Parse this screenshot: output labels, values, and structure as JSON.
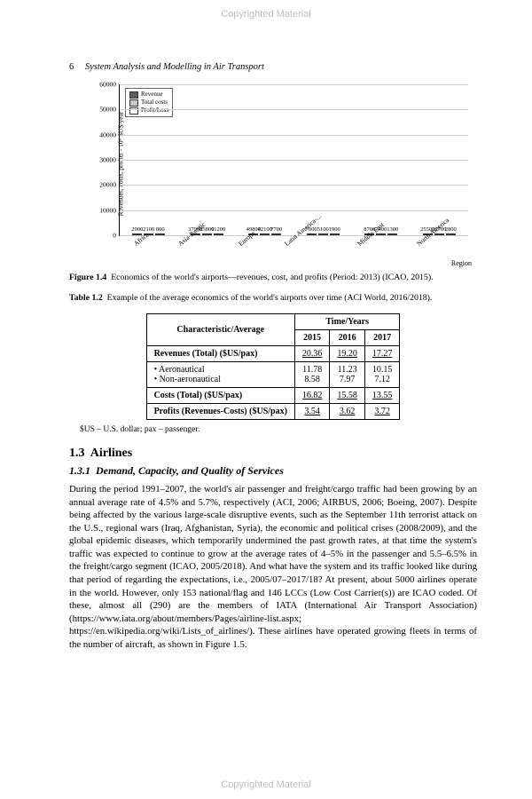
{
  "watermark": "Copyrighted Material",
  "page_number": "6",
  "running_title": "System Analysis and Modelling in Air Transport",
  "chart": {
    "type": "bar",
    "ylabel": "Revenues, costs, profits - 10⁶ $US/year",
    "ymax": 60000,
    "ytick_step": 10000,
    "yticks": [
      "0",
      "10000",
      "20000",
      "30000",
      "40000",
      "50000",
      "60000"
    ],
    "region_label": "Region",
    "legend": [
      "Revenue",
      "Total costs",
      "Profit/Loss"
    ],
    "series_colors": [
      "#5d5d5d",
      "#c9c9c9",
      "#ffffff"
    ],
    "categories": [
      "Africa",
      "Asia-Pacific",
      "Europe",
      "Latin America-...",
      "Middle East",
      "North America"
    ],
    "data": [
      {
        "vals": [
          2900,
          2100,
          800
        ]
      },
      {
        "vals": [
          37000,
          25800,
          11200
        ]
      },
      {
        "vals": [
          49800,
          42100,
          7700
        ]
      },
      {
        "vals": [
          7000,
          5100,
          1900
        ]
      },
      {
        "vals": [
          8700,
          7400,
          1300
        ]
      },
      {
        "vals": [
          25500,
          22700,
          2800
        ]
      }
    ],
    "grid_color": "#cccccc",
    "border_color": "#000000"
  },
  "figure_caption_label": "Figure 1.4",
  "figure_caption": "Economics of the world's airports—revenues, cost, and profits (Period: 2013) (ICAO, 2015).",
  "table_caption_label": "Table 1.2",
  "table_caption": "Example of the average economics of the world's airports over time (ACI World, 2016/2018).",
  "table": {
    "header_left": "Characteristic/Average",
    "header_right": "Time/Years",
    "years": [
      "2015",
      "2016",
      "2017"
    ],
    "rows": [
      {
        "label": "Revenues (Total) ($US/pax)",
        "bold": true,
        "vals": [
          "20.36",
          "19.20",
          "17.27"
        ],
        "u": true
      },
      {
        "label": "• Aeronautical",
        "bold": false,
        "vals": [
          "11.78",
          "11.23",
          "10.15"
        ],
        "u": false
      },
      {
        "label": "• Non-aeronautical",
        "bold": false,
        "vals": [
          "8.58",
          "7.97",
          "7.12"
        ],
        "u": false,
        "merge_up": true
      },
      {
        "label": "Costs (Total) ($US/pax)",
        "bold": true,
        "vals": [
          "16.82",
          "15.58",
          "13.55"
        ],
        "u": true
      },
      {
        "label": "Profits (Revenues-Costs) ($US/pax)",
        "bold": true,
        "vals": [
          "3.54",
          "3.62",
          "3.72"
        ],
        "u": true
      }
    ]
  },
  "table_note": "$US – U.S. dollar; pax – passenger.",
  "section_number": "1.3",
  "section_title": "Airlines",
  "subsection_number": "1.3.1",
  "subsection_title": "Demand, Capacity, and Quality of Services",
  "body": "During the period 1991–2007, the world's air passenger and freight/cargo traffic had been growing by an annual average rate of 4.5% and 5.7%, respectively (ACI, 2006; AIRBUS, 2006; Boeing, 2007). Despite being affected by the various large-scale disruptive events, such as the September 11th terrorist attack on the U.S., regional wars (Iraq, Afghanistan, Syria), the economic and political crises (2008/2009), and the global epidemic diseases, which temporarily undermined the past growth rates, at that time the system's traffic was expected to continue to grow at the average rates of 4–5% in the passenger and 5.5–6.5% in the freight/cargo segment (ICAO, 2005/2018). And what have the system and its traffic looked like during that period of regarding the expectations, i.e., 2005/07–2017/18? At present, about 5000 airlines operate in the world. However, only 153 national/flag and 146 LCCs (Low Cost Carrier(s)) are ICAO coded. Of these, almost all (290) are the members of IATA (International Air Transport Association) (https://www.iata.org/about/members/Pages/airline-list.aspx; https://en.wikipedia.org/wiki/Lists_of_airlines/). These airlines have operated growing fleets in terms of the number of aircraft, as shown in Figure 1.5."
}
